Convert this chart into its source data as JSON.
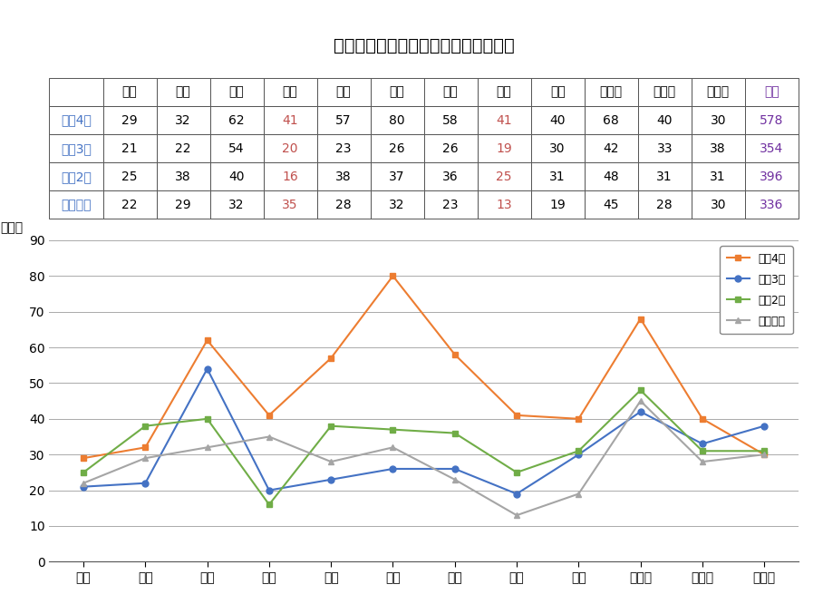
{
  "title": "アニサキス食中毒発生状況（患者数）",
  "months": [
    "１月",
    "２月",
    "３月",
    "４月",
    "５月",
    "６月",
    "７月",
    "８月",
    "９月",
    "１０月",
    "１１月",
    "１２月"
  ],
  "series": [
    {
      "label": "令和4年",
      "values": [
        29,
        32,
        62,
        41,
        57,
        80,
        58,
        41,
        40,
        68,
        40,
        30
      ],
      "total": 578,
      "color": "#ED7D31",
      "marker": "s",
      "linestyle": "-"
    },
    {
      "label": "令和3年",
      "values": [
        21,
        22,
        54,
        20,
        23,
        26,
        26,
        19,
        30,
        42,
        33,
        38
      ],
      "total": 354,
      "color": "#4472C4",
      "marker": "o",
      "linestyle": "-"
    },
    {
      "label": "令和2年",
      "values": [
        25,
        38,
        40,
        16,
        38,
        37,
        36,
        25,
        31,
        48,
        31,
        31
      ],
      "total": 396,
      "color": "#70AD47",
      "marker": "s",
      "linestyle": "-"
    },
    {
      "label": "令和元年",
      "values": [
        22,
        29,
        32,
        35,
        28,
        32,
        23,
        13,
        19,
        45,
        28,
        30
      ],
      "total": 336,
      "color": "#A5A5A5",
      "marker": "^",
      "linestyle": "-"
    }
  ],
  "table_header_row": [
    "",
    "１月",
    "２月",
    "３月",
    "４月",
    "５月",
    "６月",
    "７月",
    "８月",
    "９月",
    "１０月",
    "１１月",
    "１２月",
    "総計"
  ],
  "highlight_cols": [
    4,
    8
  ],
  "highlight_color": "#C0504D",
  "label_color": "#4472C4",
  "total_color": "#7030A0",
  "ylim": [
    0,
    90
  ],
  "yticks": [
    0,
    10,
    20,
    30,
    40,
    50,
    60,
    70,
    80,
    90
  ],
  "ylabel": "（人）",
  "background_color": "#FFFFFF",
  "title_fontsize": 14,
  "axis_fontsize": 10,
  "table_fontsize": 10
}
